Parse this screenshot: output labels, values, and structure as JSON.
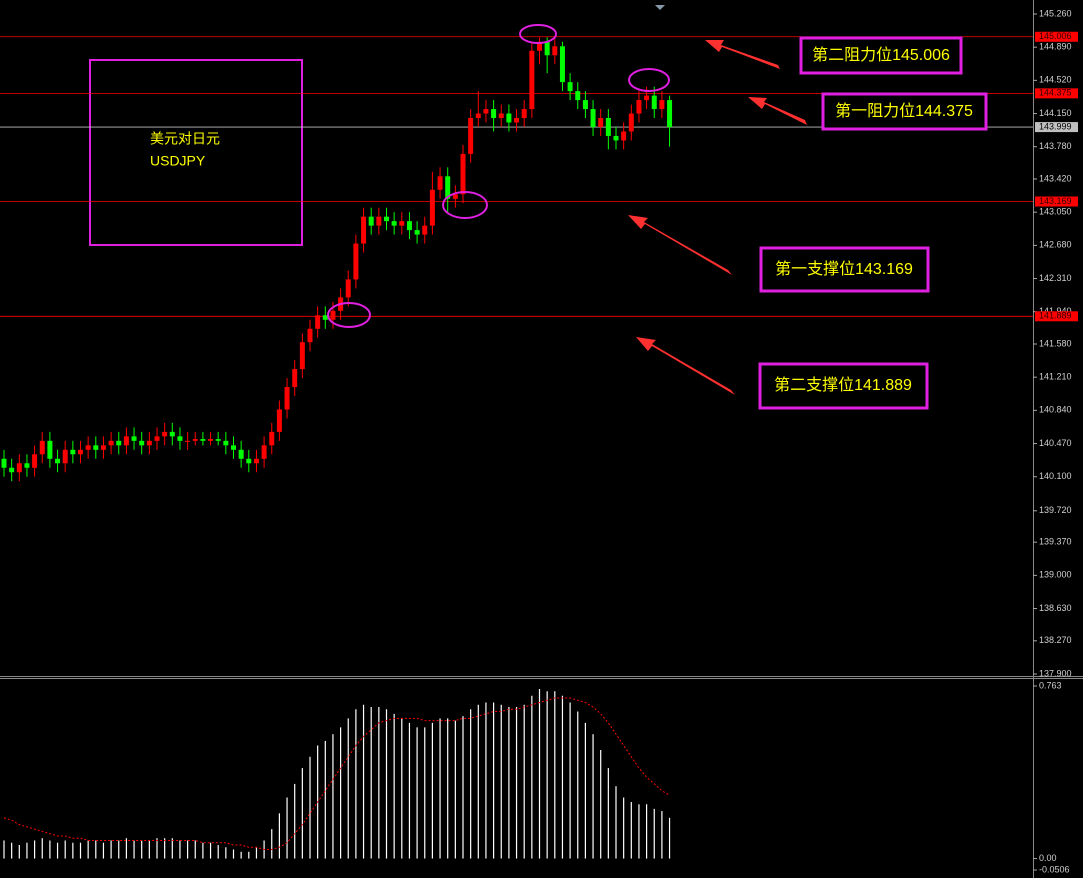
{
  "chart_data": [
    {
      "type": "candlestick",
      "label": "美元对日元",
      "symbol": "USDJPY",
      "up_color": "#ff0000",
      "down_color": "#00ff00",
      "ylim": [
        137.9,
        145.26
      ],
      "yticks": [
        {
          "value": 145.26,
          "label": "145.260"
        },
        {
          "value": 144.89,
          "label": "144.890"
        },
        {
          "value": 144.52,
          "label": "144.520"
        },
        {
          "value": 144.15,
          "label": "144.150"
        },
        {
          "value": 143.78,
          "label": "143.780"
        },
        {
          "value": 143.42,
          "label": "143.420"
        },
        {
          "value": 143.05,
          "label": "143.050"
        },
        {
          "value": 142.68,
          "label": "142.680"
        },
        {
          "value": 142.31,
          "label": "142.310"
        },
        {
          "value": 141.94,
          "label": "141.940"
        },
        {
          "value": 141.58,
          "label": "141.580"
        },
        {
          "value": 141.21,
          "label": "141.210"
        },
        {
          "value": 140.84,
          "label": "140.840"
        },
        {
          "value": 140.47,
          "label": "140.470"
        },
        {
          "value": 140.1,
          "label": "140.100"
        },
        {
          "value": 139.72,
          "label": "139.720"
        },
        {
          "value": 139.37,
          "label": "139.370"
        },
        {
          "value": 139.0,
          "label": "139.000"
        },
        {
          "value": 138.63,
          "label": "138.630"
        },
        {
          "value": 138.27,
          "label": "138.270"
        },
        {
          "value": 137.9,
          "label": "137.900"
        }
      ],
      "open": [
        140.3,
        140.2,
        140.15,
        140.25,
        140.2,
        140.35,
        140.5,
        140.3,
        140.25,
        140.4,
        140.35,
        140.4,
        140.45,
        140.4,
        140.45,
        140.5,
        140.45,
        140.55,
        140.5,
        140.45,
        140.5,
        140.55,
        140.6,
        140.55,
        140.5,
        140.5,
        140.52,
        140.5,
        140.52,
        140.5,
        140.45,
        140.4,
        140.3,
        140.25,
        140.3,
        140.45,
        140.6,
        140.85,
        141.1,
        141.3,
        141.6,
        141.75,
        141.9,
        141.85,
        141.95,
        142.1,
        142.3,
        142.7,
        143.0,
        142.9,
        143.0,
        142.95,
        142.9,
        142.95,
        142.85,
        142.8,
        142.9,
        143.3,
        143.45,
        143.2,
        143.25,
        143.7,
        144.1,
        144.15,
        144.2,
        144.1,
        144.15,
        144.05,
        144.1,
        144.2,
        144.85,
        144.95,
        144.8,
        144.9,
        144.5,
        144.4,
        144.3,
        144.2,
        144.0,
        144.1,
        143.9,
        143.85,
        143.95,
        144.15,
        144.3,
        144.35,
        144.2,
        144.3
      ],
      "high": [
        140.4,
        140.3,
        140.35,
        140.35,
        140.45,
        140.6,
        140.6,
        140.4,
        140.5,
        140.5,
        140.5,
        140.55,
        140.55,
        140.55,
        140.6,
        140.6,
        140.65,
        140.65,
        140.6,
        140.6,
        140.65,
        140.7,
        140.7,
        140.65,
        140.6,
        140.6,
        140.6,
        140.6,
        140.6,
        140.6,
        140.55,
        140.5,
        140.4,
        140.4,
        140.55,
        140.7,
        140.95,
        141.2,
        141.4,
        141.7,
        141.85,
        142.0,
        142.0,
        142.05,
        142.2,
        142.4,
        142.8,
        143.1,
        143.1,
        143.1,
        143.1,
        143.05,
        143.05,
        143.05,
        142.95,
        143.0,
        143.5,
        143.55,
        143.55,
        143.35,
        143.8,
        144.2,
        144.4,
        144.3,
        144.3,
        144.25,
        144.25,
        144.2,
        144.3,
        144.95,
        145.0,
        145.0,
        145.0,
        144.95,
        144.6,
        144.5,
        144.4,
        144.3,
        144.2,
        144.2,
        144.0,
        144.05,
        144.25,
        144.4,
        144.45,
        144.45,
        144.4,
        144.35
      ],
      "low": [
        140.1,
        140.05,
        140.05,
        140.1,
        140.1,
        140.25,
        140.2,
        140.15,
        140.15,
        140.25,
        140.25,
        140.3,
        140.3,
        140.3,
        140.35,
        140.35,
        140.35,
        140.4,
        140.35,
        140.35,
        140.4,
        140.45,
        140.45,
        140.4,
        140.4,
        140.45,
        140.45,
        140.45,
        140.45,
        140.35,
        140.3,
        140.2,
        140.15,
        140.15,
        140.2,
        140.35,
        140.5,
        140.75,
        141.0,
        141.2,
        141.5,
        141.65,
        141.75,
        141.75,
        141.85,
        142.0,
        142.2,
        142.6,
        142.8,
        142.8,
        142.85,
        142.8,
        142.8,
        142.75,
        142.7,
        142.7,
        142.8,
        143.2,
        143.05,
        143.1,
        143.15,
        143.6,
        144.0,
        144.05,
        143.95,
        144.0,
        143.95,
        143.95,
        144.0,
        144.1,
        144.7,
        144.6,
        144.7,
        144.4,
        144.3,
        144.2,
        144.1,
        143.9,
        143.9,
        143.75,
        143.75,
        143.75,
        143.85,
        144.05,
        144.2,
        144.1,
        144.1,
        143.78
      ],
      "close": [
        140.2,
        140.15,
        140.25,
        140.2,
        140.35,
        140.5,
        140.3,
        140.25,
        140.4,
        140.35,
        140.4,
        140.45,
        140.4,
        140.45,
        140.5,
        140.45,
        140.55,
        140.5,
        140.45,
        140.5,
        140.55,
        140.6,
        140.55,
        140.5,
        140.5,
        140.52,
        140.5,
        140.52,
        140.5,
        140.45,
        140.4,
        140.3,
        140.25,
        140.3,
        140.45,
        140.6,
        140.85,
        141.1,
        141.3,
        141.6,
        141.75,
        141.9,
        141.85,
        141.95,
        142.1,
        142.3,
        142.7,
        143.0,
        142.9,
        143.0,
        142.95,
        142.9,
        142.95,
        142.85,
        142.8,
        142.9,
        143.3,
        143.45,
        143.2,
        143.25,
        143.7,
        144.1,
        144.15,
        144.2,
        144.1,
        144.15,
        144.05,
        144.1,
        144.2,
        144.85,
        144.95,
        144.8,
        144.9,
        144.5,
        144.4,
        144.3,
        144.2,
        144.0,
        144.1,
        143.9,
        143.85,
        143.95,
        144.15,
        144.3,
        144.35,
        144.2,
        144.3,
        143.999
      ],
      "levels": [
        {
          "value": 145.006,
          "color": "#ff0000"
        },
        {
          "value": 144.375,
          "color": "#ff0000"
        },
        {
          "value": 143.999,
          "color": "#c0c0c0"
        },
        {
          "value": 143.169,
          "color": "#ff0000"
        },
        {
          "value": 141.889,
          "color": "#ff0000"
        }
      ],
      "annotations": [
        "第二阻力位145.006",
        "第一阻力位144.375",
        "第一支撑位143.169",
        "第二支撑位141.889"
      ]
    },
    {
      "type": "bar",
      "ylim": [
        -0.0506,
        0.763
      ],
      "yticks": [
        0.763,
        {
          "value": 0,
          "label": "0.00"
        },
        -0.0506
      ],
      "series": [
        {
          "type": "bar",
          "color": "#ffffff",
          "values": [
            0.08,
            0.07,
            0.06,
            0.07,
            0.08,
            0.09,
            0.08,
            0.07,
            0.08,
            0.07,
            0.07,
            0.08,
            0.08,
            0.07,
            0.08,
            0.08,
            0.09,
            0.08,
            0.08,
            0.08,
            0.09,
            0.09,
            0.09,
            0.08,
            0.08,
            0.08,
            0.07,
            0.07,
            0.06,
            0.05,
            0.04,
            0.03,
            0.03,
            0.05,
            0.08,
            0.13,
            0.2,
            0.27,
            0.33,
            0.4,
            0.45,
            0.5,
            0.52,
            0.55,
            0.58,
            0.62,
            0.66,
            0.68,
            0.67,
            0.67,
            0.66,
            0.64,
            0.62,
            0.6,
            0.58,
            0.58,
            0.6,
            0.62,
            0.62,
            0.61,
            0.63,
            0.66,
            0.68,
            0.69,
            0.69,
            0.68,
            0.67,
            0.67,
            0.68,
            0.72,
            0.75,
            0.74,
            0.74,
            0.72,
            0.69,
            0.65,
            0.6,
            0.55,
            0.48,
            0.4,
            0.32,
            0.27,
            0.25,
            0.24,
            0.24,
            0.22,
            0.21,
            0.18
          ]
        },
        {
          "type": "line",
          "color": "#ff0000",
          "values": [
            0.18,
            0.17,
            0.15,
            0.14,
            0.13,
            0.12,
            0.11,
            0.1,
            0.1,
            0.09,
            0.09,
            0.08,
            0.08,
            0.08,
            0.08,
            0.08,
            0.08,
            0.08,
            0.08,
            0.08,
            0.08,
            0.08,
            0.08,
            0.08,
            0.08,
            0.08,
            0.07,
            0.07,
            0.07,
            0.07,
            0.06,
            0.06,
            0.05,
            0.05,
            0.04,
            0.04,
            0.05,
            0.07,
            0.11,
            0.15,
            0.2,
            0.25,
            0.3,
            0.35,
            0.4,
            0.45,
            0.5,
            0.54,
            0.57,
            0.6,
            0.61,
            0.62,
            0.62,
            0.62,
            0.62,
            0.61,
            0.61,
            0.61,
            0.61,
            0.61,
            0.62,
            0.62,
            0.63,
            0.64,
            0.65,
            0.65,
            0.66,
            0.66,
            0.67,
            0.68,
            0.69,
            0.7,
            0.71,
            0.71,
            0.71,
            0.7,
            0.69,
            0.67,
            0.64,
            0.6,
            0.55,
            0.5,
            0.45,
            0.4,
            0.36,
            0.33,
            0.3,
            0.28
          ]
        }
      ]
    }
  ]
}
